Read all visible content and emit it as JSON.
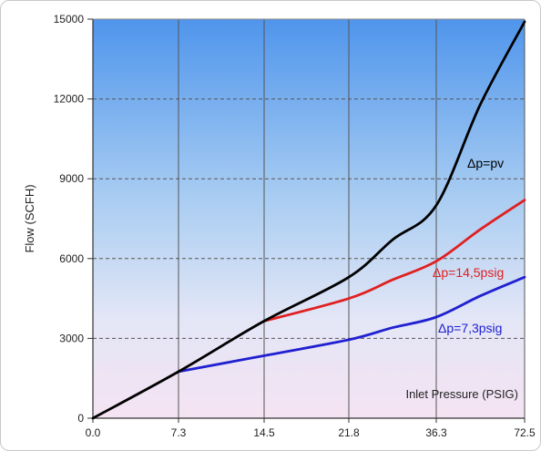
{
  "chart_data": {
    "type": "line",
    "title": "",
    "xlabel": "Inlet Pressure (PSIG)",
    "ylabel": "Flow (SCFH)",
    "x_categories": [
      "0.0",
      "7.3",
      "14.5",
      "21.8",
      "36.3",
      "72.5"
    ],
    "ylim": [
      0,
      15000
    ],
    "y_ticks": [
      "0",
      "3000",
      "6000",
      "9000",
      "12000",
      "15000"
    ],
    "grid": true,
    "background": "blue-to-pink vertical gradient",
    "series": [
      {
        "name": "Δp=pv",
        "color": "#000000",
        "x": [
          "0.0",
          "7.3",
          "14.5",
          "21.8",
          "29",
          "36.3",
          "54.4",
          "72.5"
        ],
        "y": [
          0,
          1750,
          3650,
          5300,
          6700,
          8000,
          11800,
          14900
        ]
      },
      {
        "name": "Δp=14,5psig",
        "color": "#e02020",
        "x": [
          "14.5",
          "21.8",
          "29",
          "36.3",
          "54.4",
          "72.5"
        ],
        "y": [
          3650,
          4500,
          5200,
          5900,
          7100,
          8200
        ]
      },
      {
        "name": "Δp=7,3psig",
        "color": "#2020d0",
        "x": [
          "7.3",
          "14.5",
          "21.8",
          "29",
          "36.3",
          "54.4",
          "72.5"
        ],
        "y": [
          1750,
          2350,
          2950,
          3400,
          3800,
          4600,
          5300
        ]
      }
    ]
  }
}
